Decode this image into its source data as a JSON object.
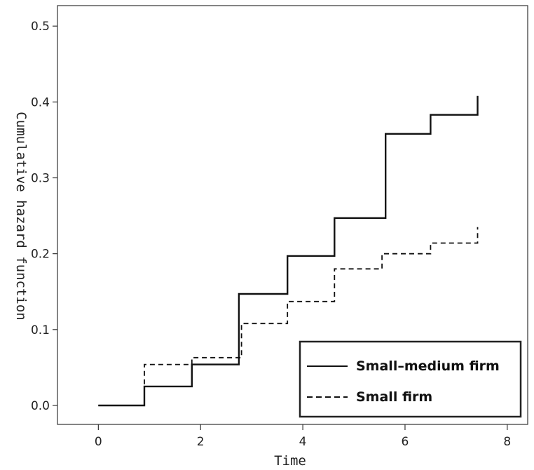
{
  "chart_data": {
    "type": "line",
    "step": true,
    "xlabel": "Time",
    "ylabel": "Cumulative hazard function",
    "xlim": [
      -0.8,
      8.4
    ],
    "ylim": [
      -0.025,
      0.527
    ],
    "xticks": [
      0,
      2,
      4,
      6,
      8
    ],
    "xtick_labels": [
      "0",
      "2",
      "4",
      "6",
      "8"
    ],
    "yticks": [
      0.0,
      0.1,
      0.2,
      0.3,
      0.4,
      0.5
    ],
    "ytick_labels": [
      "0.0",
      "0.1",
      "0.2",
      "0.3",
      "0.4",
      "0.5"
    ],
    "grid": false,
    "legend_position": "bottom-right",
    "series": [
      {
        "name": "Small–medium firm",
        "line_style": "solid",
        "color": "#111111",
        "x": [
          0,
          0.9,
          1.83,
          2.75,
          3.7,
          4.62,
          5.62,
          6.5,
          7.42,
          7.42
        ],
        "y": [
          0.0,
          0.025,
          0.054,
          0.147,
          0.197,
          0.247,
          0.358,
          0.383,
          0.383,
          0.408
        ]
      },
      {
        "name": "Small firm",
        "line_style": "dashed",
        "color": "#111111",
        "x": [
          0,
          0.9,
          1.83,
          2.8,
          3.7,
          4.62,
          5.55,
          6.5,
          7.42,
          7.42
        ],
        "y": [
          0.0,
          0.054,
          0.063,
          0.108,
          0.137,
          0.18,
          0.2,
          0.214,
          0.214,
          0.235
        ]
      }
    ]
  }
}
